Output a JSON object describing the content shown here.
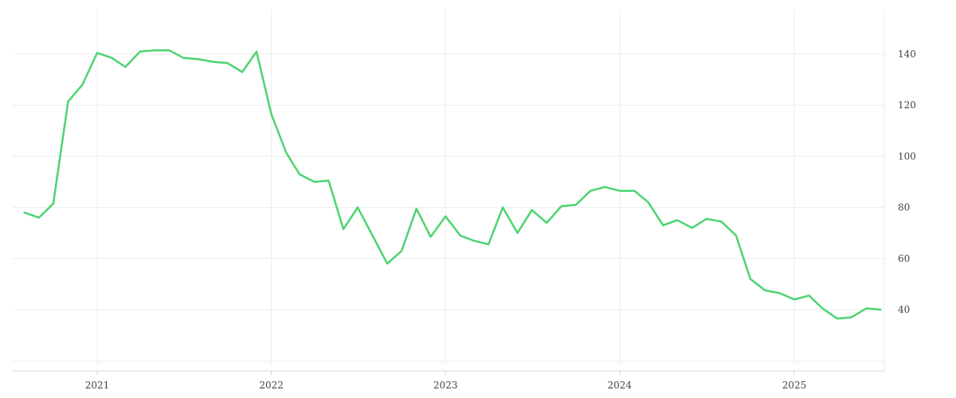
{
  "chart_data": {
    "type": "line",
    "title": "",
    "xlabel": "",
    "ylabel": "",
    "x_ticks": [
      "2021",
      "2022",
      "2023",
      "2024",
      "2025"
    ],
    "y_ticks": [
      40,
      60,
      80,
      100,
      120,
      140
    ],
    "ylim": [
      20,
      155
    ],
    "xlim": [
      "2020-07-01",
      "2025-07-01"
    ],
    "grid": true,
    "y_axis_side": "right",
    "legend": "none",
    "series": [
      {
        "color": "#4cd471",
        "x": [
          "2020-08-01",
          "2020-09-01",
          "2020-10-01",
          "2020-11-01",
          "2020-12-01",
          "2021-01-01",
          "2021-02-01",
          "2021-03-01",
          "2021-04-01",
          "2021-05-01",
          "2021-06-01",
          "2021-07-01",
          "2021-08-01",
          "2021-09-01",
          "2021-10-01",
          "2021-11-01",
          "2021-12-01",
          "2022-01-01",
          "2022-02-01",
          "2022-03-01",
          "2022-04-01",
          "2022-05-01",
          "2022-06-01",
          "2022-07-01",
          "2022-08-01",
          "2022-09-01",
          "2022-10-01",
          "2022-11-01",
          "2022-12-01",
          "2023-01-01",
          "2023-02-01",
          "2023-03-01",
          "2023-04-01",
          "2023-05-01",
          "2023-06-01",
          "2023-07-01",
          "2023-08-01",
          "2023-09-01",
          "2023-10-01",
          "2023-11-01",
          "2023-12-01",
          "2024-01-01",
          "2024-02-01",
          "2024-03-01",
          "2024-04-01",
          "2024-05-01",
          "2024-06-01",
          "2024-07-01",
          "2024-08-01",
          "2024-09-01",
          "2024-10-01",
          "2024-11-01",
          "2024-12-01",
          "2025-01-01",
          "2025-02-01",
          "2025-03-01",
          "2025-04-01",
          "2025-05-01",
          "2025-06-01",
          "2025-07-01"
        ],
        "values": [
          78,
          76,
          81.5,
          121.5,
          128,
          140.5,
          138.5,
          135,
          141,
          141.5,
          141.5,
          138.5,
          138,
          137,
          136.5,
          133,
          141,
          116.5,
          101.5,
          93,
          90,
          90.5,
          71.5,
          80,
          69,
          58,
          63,
          79.5,
          68.5,
          76.5,
          69,
          67,
          65.5,
          80,
          70,
          79,
          74,
          80.5,
          81,
          86.5,
          88,
          86.5,
          86.5,
          82,
          73,
          75,
          72,
          75.5,
          74.5,
          69,
          52,
          47.5,
          46.5,
          44,
          45.5,
          40.5,
          36.5,
          37,
          40.5,
          40
        ]
      }
    ]
  }
}
